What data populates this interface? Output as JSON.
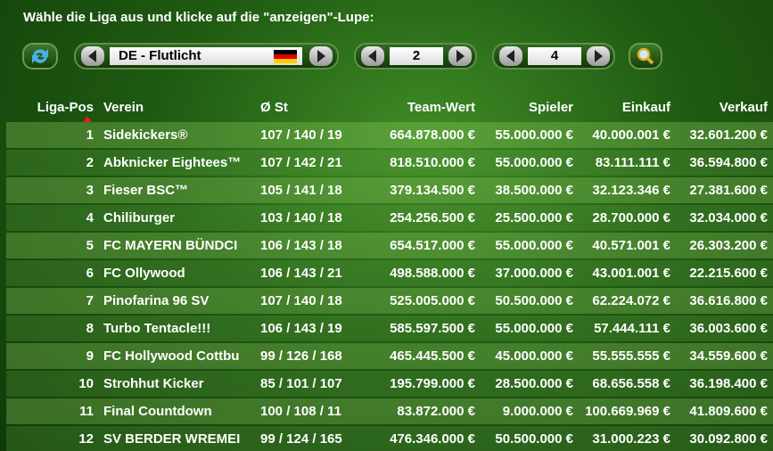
{
  "header": {
    "instruction": "Wähle die Liga aus und klicke auf die \"anzeigen\"-Lupe:"
  },
  "controls": {
    "league": "DE - Flutlicht",
    "selector_a": "2",
    "selector_b": "4"
  },
  "table": {
    "headers": [
      "Liga-Pos",
      "Verein",
      "Ø St",
      "Team-Wert",
      "Spieler",
      "Einkauf",
      "Verkauf"
    ],
    "rows": [
      [
        "1",
        "Sidekickers®",
        "107 / 140 / 19",
        "664.878.000 €",
        "55.000.000 €",
        "40.000.001 €",
        "32.601.200 €"
      ],
      [
        "2",
        "Abknicker Eightees™",
        "107 / 142 / 21",
        "818.510.000 €",
        "55.000.000 €",
        "83.111.111 €",
        "36.594.800 €"
      ],
      [
        "3",
        "Fieser BSC™",
        "105 / 141 / 18",
        "379.134.500 €",
        "38.500.000 €",
        "32.123.346 €",
        "27.381.600 €"
      ],
      [
        "4",
        "Chiliburger",
        "103 / 140 / 18",
        "254.256.500 €",
        "25.500.000 €",
        "28.700.000 €",
        "32.034.000 €"
      ],
      [
        "5",
        "FC MAYERN BÜNDCI",
        "106 / 143 / 18",
        "654.517.000 €",
        "55.000.000 €",
        "40.571.001 €",
        "26.303.200 €"
      ],
      [
        "6",
        "FC Ollywood",
        "106 / 143 / 21",
        "498.588.000 €",
        "37.000.000 €",
        "43.001.001 €",
        "22.215.600 €"
      ],
      [
        "7",
        "Pinofarina 96 SV",
        "107 / 140 / 18",
        "525.005.000 €",
        "50.500.000 €",
        "62.224.072 €",
        "36.616.800 €"
      ],
      [
        "8",
        "Turbo Tentacle!!!",
        "106 / 143 / 19",
        "585.597.500 €",
        "55.000.000 €",
        "57.444.111 €",
        "36.003.600 €"
      ],
      [
        "9",
        "FC Hollywood Cottbu",
        "99 / 126 / 168",
        "465.445.500 €",
        "45.000.000 €",
        "55.555.555 €",
        "34.559.600 €"
      ],
      [
        "10",
        "Strohhut Kicker",
        "85 / 101 / 107",
        "195.799.000 €",
        "28.500.000 €",
        "68.656.558 €",
        "36.198.400 €"
      ],
      [
        "11",
        "Final Countdown",
        "100 / 108 / 11",
        "83.872.000 €",
        "9.000.000 €",
        "100.669.969 €",
        "41.809.600 €"
      ],
      [
        "12",
        "SV BERDER WREMEI",
        "99 / 124 / 165",
        "476.346.000 €",
        "50.500.000 €",
        "31.000.223 €",
        "30.092.800 €"
      ]
    ]
  }
}
